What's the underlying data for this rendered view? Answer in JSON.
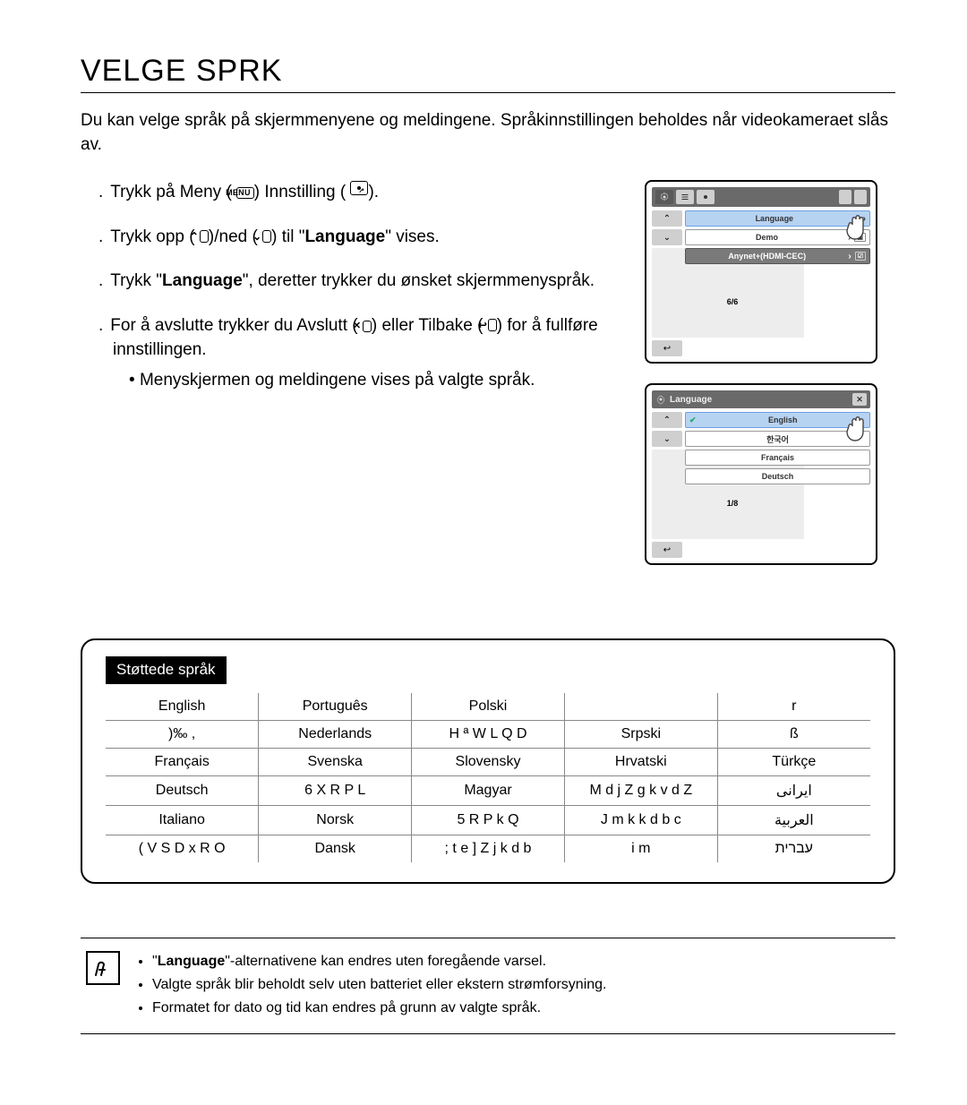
{
  "title": "VELGE SPRK",
  "intro": "Du kan velge språk på skjermmenyene og meldingene. Språkinnstillingen beholdes når videokameraet slås av.",
  "steps": {
    "s1_a": "Trykk på Meny (",
    "s1_menu": "MENU",
    "s1_b": ")      Innstilling (",
    "s1_c": ").",
    "s2_a": "Trykk opp (",
    "s2_b": ")/ned (",
    "s2_c": ") til \"",
    "s2_lang": "Language",
    "s2_d": "\" vises.",
    "s3_a": "Trykk \"",
    "s3_lang": "Language",
    "s3_b": "\", deretter trykker du ønsket skjermmenyspråk.",
    "s4_a": "For å avslutte trykker du Avslutt (",
    "s4_b": ") eller Tilbake (",
    "s4_c": ") for å fullføre innstillingen.",
    "s4_sub": "Menyskjermen og meldingene vises på valgte språk."
  },
  "screens": {
    "sc1": {
      "page": "6/6",
      "row1": "Language",
      "row2": "Demo",
      "row3": "Anynet+(HDMI-CEC)"
    },
    "sc2": {
      "title": "Language",
      "page": "1/8",
      "opt1": "English",
      "opt2": "한국어",
      "opt3": "Français",
      "opt4": "Deutsch"
    }
  },
  "lang_box_title": "Støttede språk",
  "lang_table": {
    "rows": [
      [
        "English",
        "Português",
        "Polski",
        "",
        "r"
      ],
      [
        ")‰ ,",
        "Nederlands",
        "H ª W L Q D",
        "Srpski",
        "ß"
      ],
      [
        "Français",
        "Svenska",
        "Slovensky",
        "Hrvatski",
        "Türkçe"
      ],
      [
        "Deutsch",
        "6 X R P L",
        "Magyar",
        "M d j Z  g k v d Z",
        "ايرانى"
      ],
      [
        "Italiano",
        "Norsk",
        "5 R P k Q",
        "J m k k d b c",
        "العربية"
      ],
      [
        "( V S D x R O",
        "Dansk",
        "; t e ] Z j k d b",
        "i m",
        "עברית"
      ]
    ]
  },
  "note": {
    "n1_a": "\"",
    "n1_lang": "Language",
    "n1_b": "\"-alternativene kan endres uten foregående varsel.",
    "n2": "Valgte språk blir beholdt selv uten batteriet eller ekstern strømforsyning.",
    "n3": "Formatet for dato og tid kan endres på grunn av valgte språk."
  },
  "colors": {
    "highlight_bg": "#b7d3f2",
    "panel_bg": "#6a6a6a",
    "chip_bg": "#cfcfcf"
  }
}
